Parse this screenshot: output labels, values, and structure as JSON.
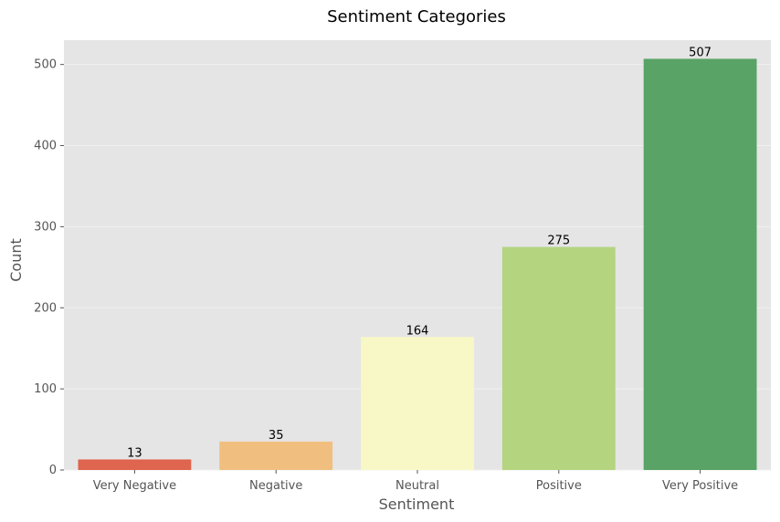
{
  "chart_data": {
    "type": "bar",
    "title": "Sentiment Categories",
    "xlabel": "Sentiment",
    "ylabel": "Count",
    "categories": [
      "Very Negative",
      "Negative",
      "Neutral",
      "Positive",
      "Very Positive"
    ],
    "values": [
      13,
      35,
      164,
      275,
      507
    ],
    "data_labels": [
      "13",
      "35",
      "164",
      "275",
      "507"
    ],
    "colors": [
      "#e0654e",
      "#f0bf7f",
      "#f8f8c7",
      "#b4d480",
      "#58a365"
    ],
    "ylim": [
      0,
      530
    ],
    "yticks": [
      0,
      100,
      200,
      300,
      400,
      500
    ],
    "ytick_labels": [
      "0",
      "100",
      "200",
      "300",
      "400",
      "500"
    ],
    "grid": true,
    "style": {
      "plot_background": "#e5e5e5",
      "grid_color": "#f0f0f0"
    }
  }
}
